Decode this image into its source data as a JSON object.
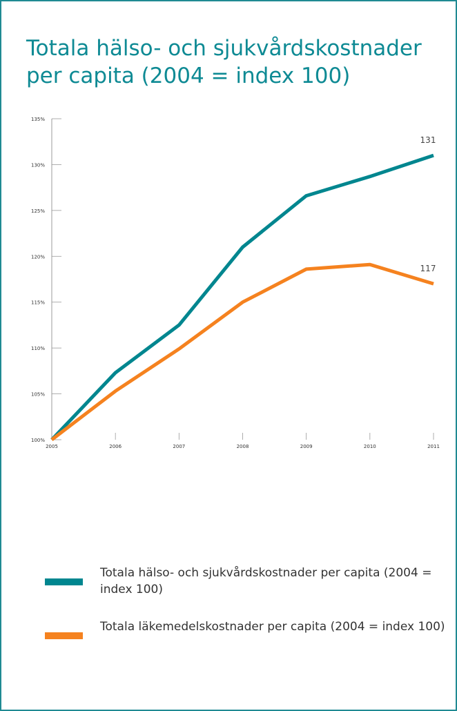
{
  "chart_data": {
    "type": "line",
    "title": "Totala hälso- och sjukvårdskostnader per capita (2004 = index 100)",
    "x": [
      2005,
      2006,
      2007,
      2008,
      2009,
      2010,
      2011
    ],
    "xlim": [
      2005,
      2011
    ],
    "xticks": [
      2005,
      2006,
      2007,
      2008,
      2009,
      2010,
      2011
    ],
    "ylim": [
      100,
      135
    ],
    "yticks": [
      {
        "value": 100,
        "label": "100%"
      },
      {
        "value": 105,
        "label": "105%"
      },
      {
        "value": 110,
        "label": "110%"
      },
      {
        "value": 115,
        "label": "115%"
      },
      {
        "value": 120,
        "label": "120%"
      },
      {
        "value": 125,
        "label": "125%"
      },
      {
        "value": 130,
        "label": "130%"
      },
      {
        "value": 135,
        "label": "135%"
      }
    ],
    "grid": false,
    "series": [
      {
        "name": "Totala hälso- och sjukvårdskostnader per capita (2004 = index 100)",
        "color": "#00868f",
        "values": [
          100,
          107.3,
          112.5,
          121,
          126.6,
          128.7,
          131
        ]
      },
      {
        "name": "Totala läkemedelskostnader per capita (2004 = index 100)",
        "color": "#f5821f",
        "values": [
          100,
          105.3,
          109.9,
          115,
          118.6,
          119.1,
          117
        ]
      }
    ]
  }
}
